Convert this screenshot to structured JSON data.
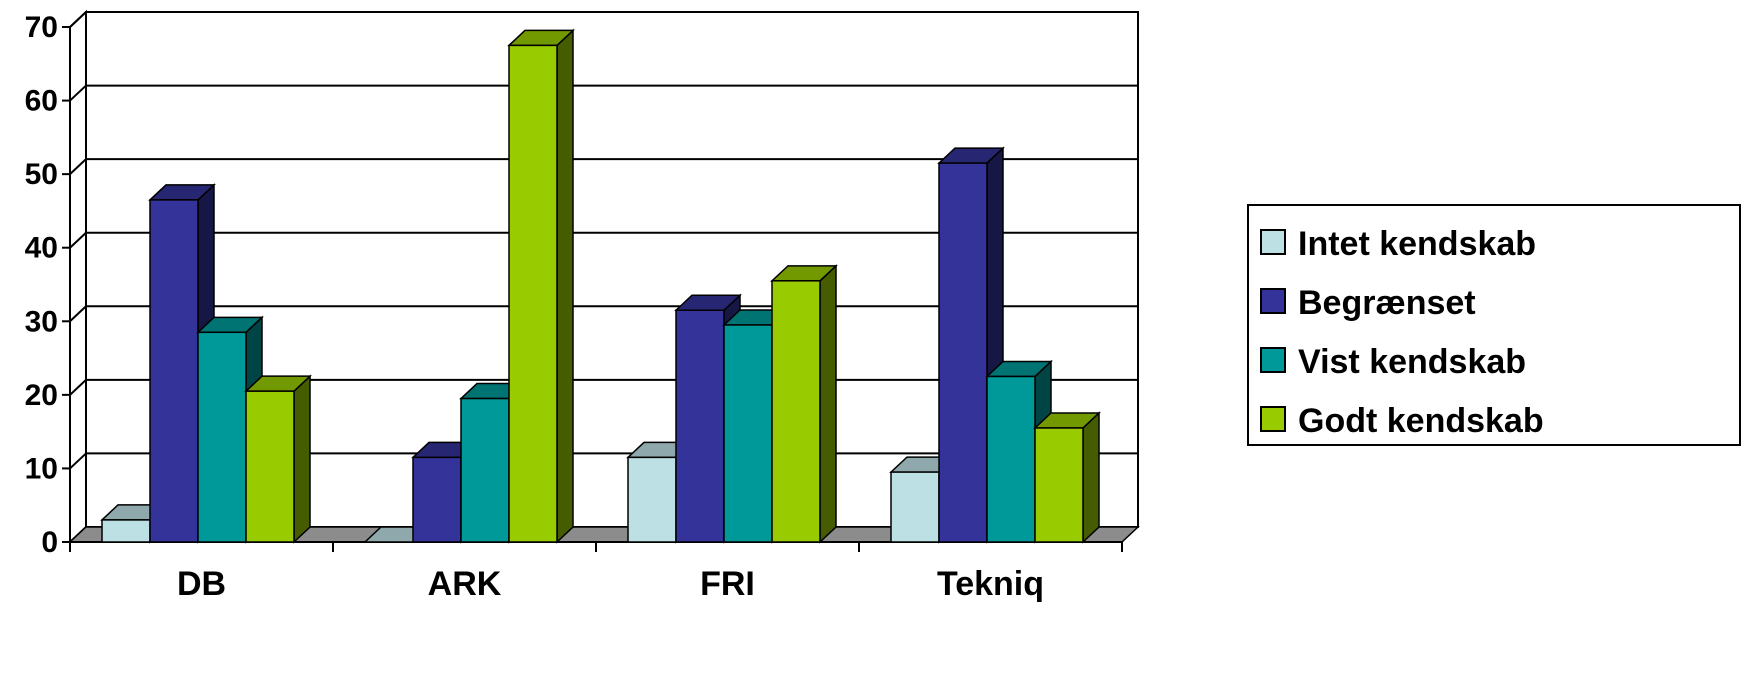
{
  "chart_data": {
    "type": "bar",
    "style": "3d-clustered-column",
    "categories": [
      "DB",
      "ARK",
      "FRI",
      "Tekniq"
    ],
    "series": [
      {
        "name": "Intet kendskab",
        "color": "#bde0e4",
        "values": [
          3,
          0,
          11.5,
          9.5
        ]
      },
      {
        "name": "Begrænset",
        "color": "#333399",
        "values": [
          46.5,
          11.5,
          31.5,
          51.5
        ]
      },
      {
        "name": "Vist kendskab",
        "color": "#009999",
        "values": [
          28.5,
          19.5,
          29.5,
          22.5
        ]
      },
      {
        "name": "Godt kendskab",
        "color": "#99cc00",
        "values": [
          20.5,
          0,
          35.5,
          15.5
        ]
      }
    ],
    "extra_bars": {
      "ARK": {
        "Godt kendskab": 67.5
      }
    },
    "ylim": [
      0,
      70
    ],
    "yticks": [
      "0",
      "10",
      "20",
      "30",
      "40",
      "50",
      "60",
      "70"
    ],
    "grid": true,
    "legend_position": "right",
    "title": "",
    "xlabel": "",
    "ylabel": ""
  }
}
